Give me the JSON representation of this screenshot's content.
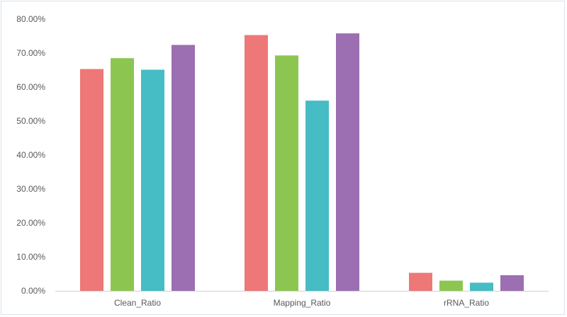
{
  "chart_data": {
    "type": "bar",
    "categories": [
      "Clean_Ratio",
      "Mapping_Ratio",
      "rRNA_Ratio"
    ],
    "series": [
      {
        "values": [
          65.3,
          75.3,
          5.3
        ],
        "color": "#ee7777"
      },
      {
        "values": [
          68.5,
          69.3,
          3.0
        ],
        "color": "#8cc651"
      },
      {
        "values": [
          65.1,
          56.0,
          2.4
        ],
        "color": "#46bcc5"
      },
      {
        "values": [
          72.4,
          75.8,
          4.6
        ],
        "color": "#9b6fb1"
      }
    ],
    "ylim": [
      0,
      80
    ],
    "yticks": [
      0,
      10,
      20,
      30,
      40,
      50,
      60,
      70,
      80
    ],
    "ytick_labels": [
      "0.00%",
      "10.00%",
      "20.00%",
      "30.00%",
      "40.00%",
      "50.00%",
      "60.00%",
      "70.00%",
      "80.00%"
    ],
    "grid": false,
    "legend": "none",
    "title": "",
    "xlabel": "",
    "ylabel": ""
  }
}
